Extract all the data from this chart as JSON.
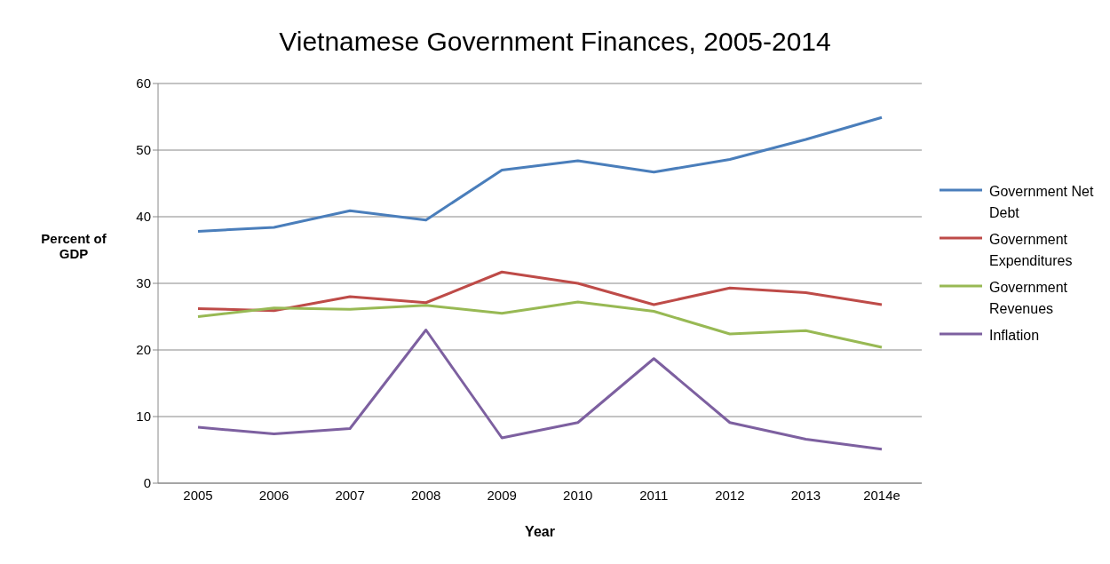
{
  "chart_data": {
    "type": "line",
    "title": "Vietnamese Government Finances, 2005-2014",
    "xlabel": "Year",
    "ylabel": "Percent of GDP",
    "categories": [
      "2005",
      "2006",
      "2007",
      "2008",
      "2009",
      "2010",
      "2011",
      "2012",
      "2013",
      "2014e"
    ],
    "series": [
      {
        "name": "Government Net Debt",
        "color": "#4a7ebb",
        "values": [
          37.8,
          38.4,
          40.9,
          39.5,
          47.0,
          48.4,
          46.7,
          48.6,
          51.6,
          54.9
        ]
      },
      {
        "name": "Government Expenditures",
        "color": "#be4b48",
        "values": [
          26.2,
          25.9,
          28.0,
          27.1,
          31.7,
          30.0,
          26.8,
          29.3,
          28.6,
          26.8
        ]
      },
      {
        "name": "Government Revenues",
        "color": "#98b954",
        "values": [
          25.0,
          26.3,
          26.1,
          26.7,
          25.5,
          27.2,
          25.8,
          22.4,
          22.9,
          20.4
        ]
      },
      {
        "name": "Inflation",
        "color": "#7d60a0",
        "values": [
          8.4,
          7.4,
          8.2,
          23.0,
          6.8,
          9.1,
          18.7,
          9.1,
          6.6,
          5.1
        ]
      }
    ],
    "ylim": [
      0,
      60
    ],
    "yticks": [
      0,
      10,
      20,
      30,
      40,
      50,
      60
    ],
    "grid": "y",
    "legend": "right",
    "marker": "none",
    "line_style": "solid"
  }
}
